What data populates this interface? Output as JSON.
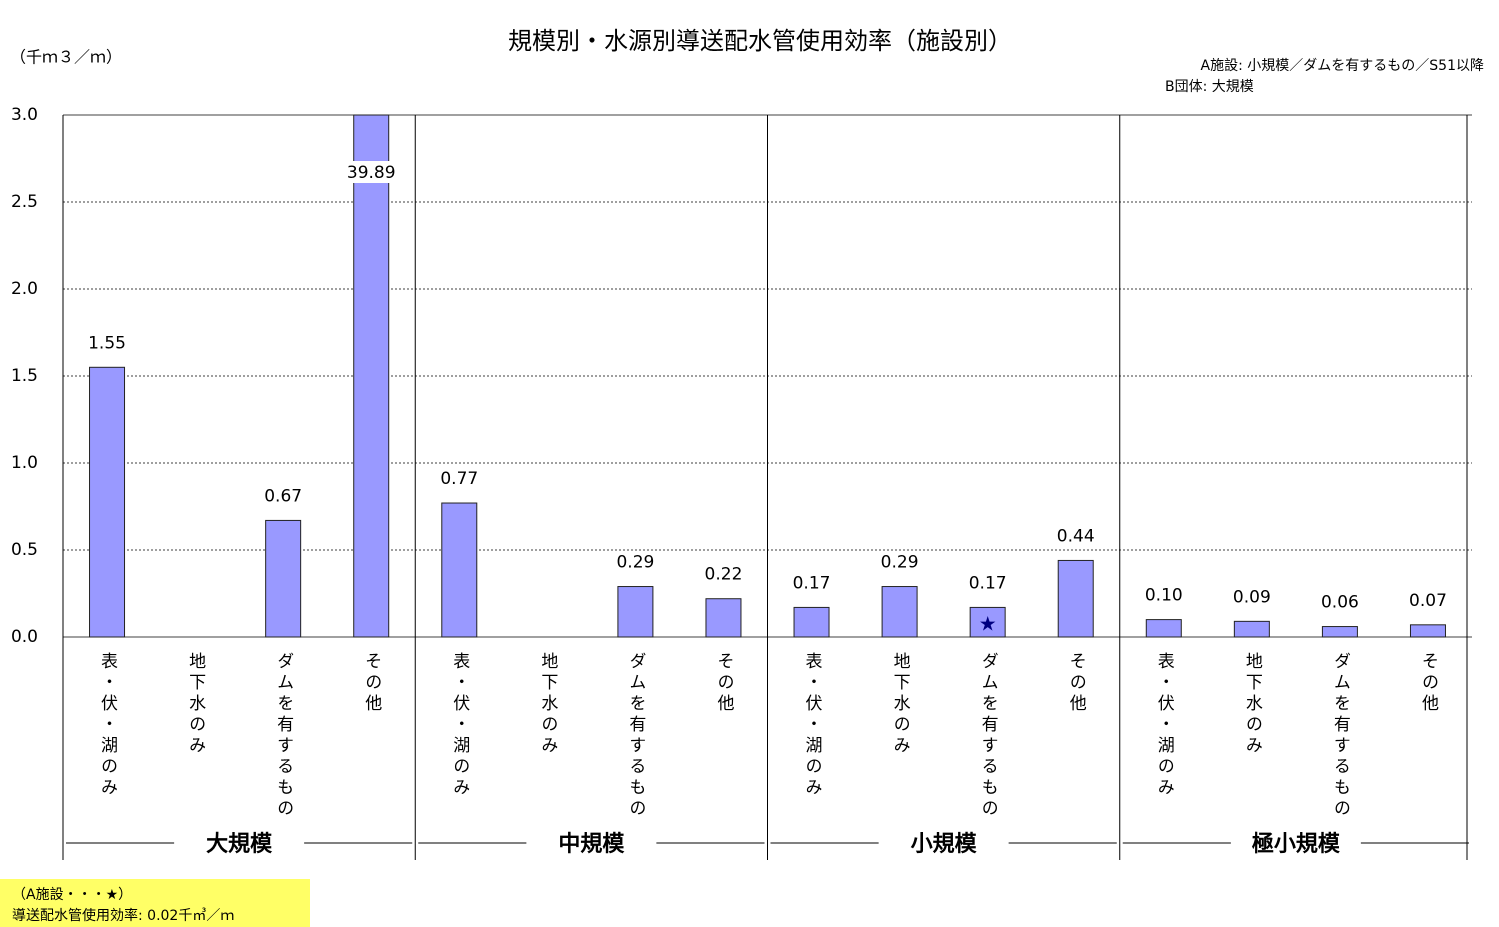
{
  "chart_data": {
    "type": "bar",
    "title": "規模別・水源別導送配水管使用効率（施設別）",
    "y_unit": "（千ｍ３／ｍ）",
    "annotations": [
      "A施設: 小規模／ダムを有するもの／S51以降",
      "B団体: 大規模"
    ],
    "note": [
      "（A施設・・・★）",
      "導送配水管使用効率: 0.02千㎥／ｍ"
    ],
    "categories": [
      "表・伏・湖のみ",
      "地下水のみ",
      "ダムを有するもの",
      "その他",
      "表・伏・湖のみ",
      "地下水のみ",
      "ダムを有するもの",
      "その他",
      "表・伏・湖のみ",
      "地下水のみ",
      "ダムを有するもの",
      "その他",
      "表・伏・湖のみ",
      "地下水のみ",
      "ダムを有するもの",
      "その他"
    ],
    "groups": [
      "大規模",
      "中規模",
      "小規模",
      "極小規模"
    ],
    "values": [
      1.55,
      null,
      0.67,
      39.89,
      0.77,
      null,
      0.29,
      0.22,
      0.17,
      0.29,
      0.17,
      0.44,
      0.1,
      0.09,
      0.06,
      0.07
    ],
    "value_labels": [
      "1.55",
      null,
      "0.67",
      "39.89",
      "0.77",
      null,
      "0.29",
      "0.22",
      "0.17",
      "0.29",
      "0.17",
      "0.44",
      "0.10",
      "0.09",
      "0.06",
      "0.07"
    ],
    "highlight": {
      "index": 10,
      "symbol": "★"
    },
    "color": "#9999ff",
    "ylim": [
      0,
      3
    ],
    "yticks": [
      {
        "value": 0,
        "label": "0.0"
      },
      0.5,
      {
        "value": 1,
        "label": "1.0"
      },
      1.5,
      {
        "value": 2,
        "label": "2.0"
      },
      2.5,
      {
        "value": 3,
        "label": "3.0"
      }
    ],
    "grid": true
  }
}
